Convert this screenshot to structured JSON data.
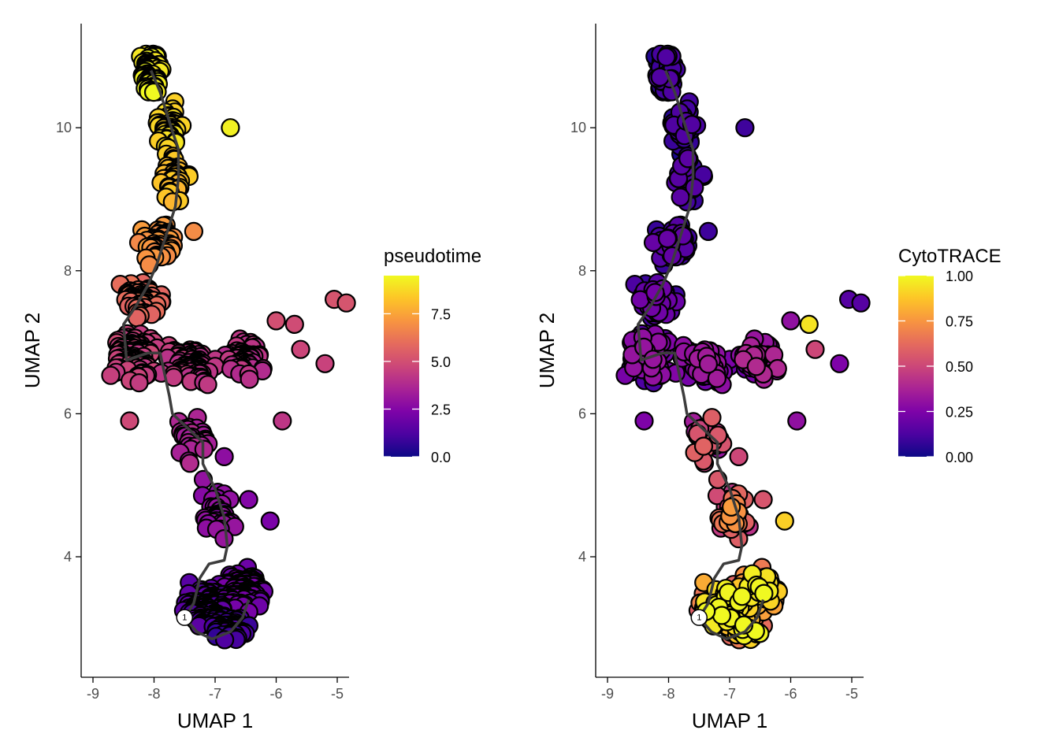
{
  "chart_data": [
    {
      "type": "scatter",
      "id": "pseudotime",
      "xlabel": "UMAP 1",
      "ylabel": "UMAP 2",
      "xlim": [
        -9.2,
        -4.8
      ],
      "ylim": [
        2.25,
        11.4
      ],
      "x_ticks": [
        -9,
        -8,
        -7,
        -6,
        -5
      ],
      "x_tick_labels": [
        "-9",
        "-8",
        "-7",
        "-6",
        "-5"
      ],
      "y_ticks": [
        4,
        6,
        8,
        10
      ],
      "y_tick_labels": [
        "4",
        "6",
        "8",
        "10"
      ],
      "grid": false,
      "legend": {
        "title": "pseudotime",
        "position": "right",
        "min": 0,
        "max": 9.5,
        "ticks": [
          0,
          2.5,
          5,
          7.5
        ],
        "tick_labels": [
          "0.0",
          "2.5",
          "5.0",
          "7.5"
        ],
        "colormap": "plasma"
      },
      "trajectory_root_label": "1"
    },
    {
      "type": "scatter",
      "id": "cytotrace",
      "xlabel": "UMAP 1",
      "ylabel": "UMAP 2",
      "xlim": [
        -9.2,
        -4.8
      ],
      "ylim": [
        2.25,
        11.4
      ],
      "x_ticks": [
        -9,
        -8,
        -7,
        -6,
        -5
      ],
      "x_tick_labels": [
        "-9",
        "-8",
        "-7",
        "-6",
        "-5"
      ],
      "y_ticks": [
        4,
        6,
        8,
        10
      ],
      "y_tick_labels": [
        "4",
        "6",
        "8",
        "10"
      ],
      "grid": false,
      "legend": {
        "title": "CytoTRACE",
        "position": "right",
        "min": 0,
        "max": 1,
        "ticks": [
          0,
          0.25,
          0.5,
          0.75,
          1.0
        ],
        "tick_labels": [
          "0.00",
          "0.25",
          "0.50",
          "0.75",
          "1.00"
        ],
        "colormap": "plasma"
      },
      "trajectory_root_label": "1"
    }
  ],
  "trajectory": {
    "main": [
      [
        -8.05,
        10.8
      ],
      [
        -7.9,
        10.5
      ],
      [
        -7.7,
        9.95
      ],
      [
        -7.6,
        9.7
      ],
      [
        -7.6,
        9.3
      ],
      [
        -7.65,
        8.9
      ],
      [
        -7.8,
        8.5
      ],
      [
        -7.95,
        8.1
      ],
      [
        -8.1,
        7.8
      ],
      [
        -8.3,
        7.5
      ],
      [
        -8.5,
        7.25
      ],
      [
        -8.45,
        6.75
      ],
      [
        -8.1,
        6.85
      ],
      [
        -7.9,
        6.85
      ],
      [
        -7.75,
        6.25
      ],
      [
        -7.7,
        6.0
      ],
      [
        -7.45,
        5.8
      ],
      [
        -7.2,
        5.6
      ],
      [
        -7.2,
        5.3
      ],
      [
        -7.0,
        4.95
      ],
      [
        -6.85,
        4.55
      ],
      [
        -6.8,
        4.15
      ],
      [
        -6.85,
        3.95
      ],
      [
        -7.1,
        3.9
      ],
      [
        -7.25,
        3.7
      ],
      [
        -7.35,
        3.35
      ],
      [
        -7.5,
        3.15
      ],
      [
        -7.3,
        2.95
      ],
      [
        -7.05,
        2.85
      ],
      [
        -6.75,
        2.95
      ],
      [
        -6.55,
        3.15
      ],
      [
        -6.45,
        3.4
      ]
    ],
    "root": [
      -7.5,
      3.15
    ]
  },
  "colors": {
    "marker_outline": "#000000",
    "trajectory_line": "#3d3d3d",
    "axis": "#000000",
    "tick_label": "#4d4d4d"
  }
}
